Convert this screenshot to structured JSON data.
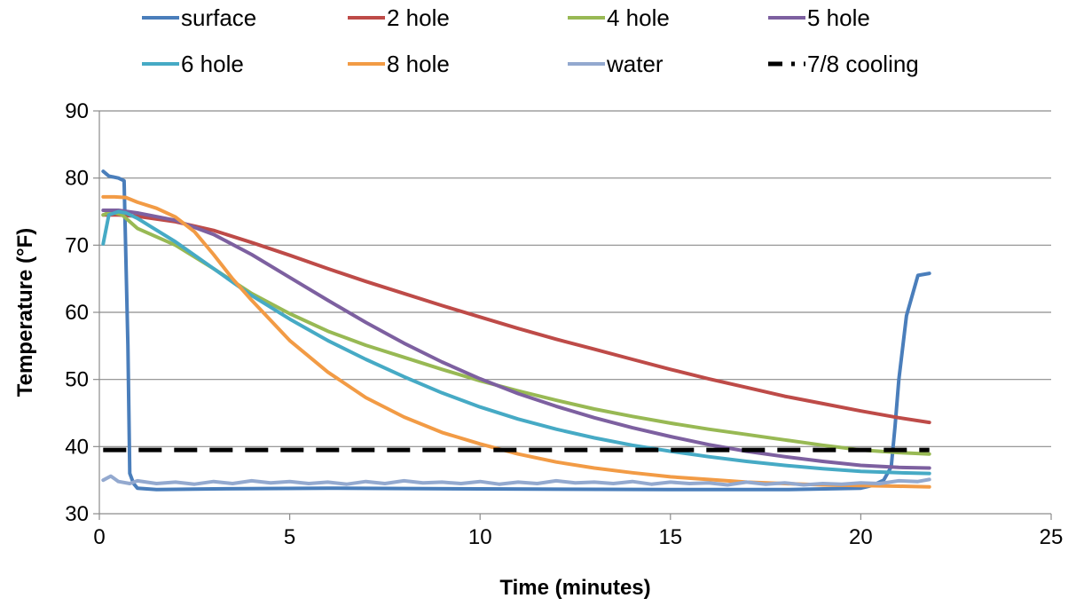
{
  "chart_data": {
    "type": "line",
    "title": "",
    "xlabel": "Time (minutes)",
    "ylabel": "Temperature (°F)",
    "xlim": [
      0,
      25
    ],
    "ylim": [
      30,
      90
    ],
    "xticks": [
      "0",
      "5",
      "10",
      "15",
      "20",
      "25"
    ],
    "yticks": [
      "30",
      "40",
      "50",
      "60",
      "70",
      "80",
      "90"
    ],
    "grid": "horizontal",
    "legend_position": "top",
    "series": [
      {
        "name": "surface",
        "color": "#4A7EBB",
        "dash": "solid",
        "x": [
          0.1,
          0.25,
          0.5,
          0.65,
          0.75,
          0.8,
          0.9,
          1.0,
          1.5,
          3,
          6,
          10,
          15,
          18,
          20,
          20.3,
          20.6,
          20.8,
          20.9,
          21.0,
          21.2,
          21.5,
          21.8
        ],
        "y": [
          81,
          80.3,
          80,
          79.6,
          55,
          36,
          34.5,
          33.8,
          33.6,
          33.7,
          33.8,
          33.7,
          33.6,
          33.6,
          33.8,
          34.2,
          35,
          37,
          43,
          50,
          59.5,
          65.5,
          65.8
        ]
      },
      {
        "name": "2 hole",
        "color": "#BE4B48",
        "dash": "solid",
        "x": [
          0.1,
          0.5,
          1,
          2,
          3,
          4,
          5,
          6,
          7,
          8,
          9,
          10,
          11,
          12,
          13,
          14,
          15,
          16,
          17,
          18,
          19,
          20,
          21,
          21.8
        ],
        "y": [
          74.5,
          74.5,
          74.3,
          73.5,
          72.2,
          70.4,
          68.5,
          66.5,
          64.6,
          62.8,
          61,
          59.3,
          57.6,
          56,
          54.5,
          53,
          51.5,
          50.1,
          48.8,
          47.5,
          46.4,
          45.3,
          44.3,
          43.6
        ]
      },
      {
        "name": "4 hole",
        "color": "#98B954",
        "dash": "solid",
        "x": [
          0.1,
          0.3,
          0.6,
          1,
          2,
          3,
          4,
          5,
          6,
          7,
          8,
          9,
          10,
          11,
          12,
          13,
          14,
          15,
          16,
          17,
          18,
          19,
          20,
          21,
          21.8
        ],
        "y": [
          74.5,
          75,
          74.5,
          72.5,
          70,
          66.5,
          62.8,
          59.8,
          57.2,
          55.1,
          53.3,
          51.5,
          49.8,
          48.3,
          46.9,
          45.6,
          44.5,
          43.5,
          42.6,
          41.8,
          41,
          40.2,
          39.5,
          39.1,
          38.9
        ]
      },
      {
        "name": "5 hole",
        "color": "#7D60A0",
        "dash": "solid",
        "x": [
          0.1,
          0.5,
          1,
          2,
          3,
          4,
          5,
          6,
          7,
          8,
          9,
          10,
          11,
          12,
          13,
          14,
          15,
          16,
          17,
          18,
          19,
          20,
          21,
          21.8
        ],
        "y": [
          75.2,
          75.2,
          74.8,
          73.7,
          71.6,
          68.6,
          65.2,
          61.8,
          58.5,
          55.4,
          52.6,
          50.1,
          47.9,
          46,
          44.3,
          42.8,
          41.5,
          40.3,
          39.3,
          38.5,
          37.8,
          37.2,
          36.9,
          36.8
        ]
      },
      {
        "name": "6 hole",
        "color": "#46AAC5",
        "dash": "solid",
        "x": [
          0.1,
          0.25,
          0.5,
          0.7,
          1,
          2,
          3,
          4,
          5,
          6,
          7,
          8,
          9,
          10,
          11,
          12,
          13,
          14,
          15,
          16,
          17,
          18,
          19,
          20,
          21,
          21.8
        ],
        "y": [
          70.2,
          74.5,
          75,
          74.8,
          74,
          70.5,
          66.5,
          62.5,
          59,
          55.8,
          53,
          50.4,
          48,
          45.9,
          44.1,
          42.6,
          41.3,
          40.2,
          39.3,
          38.5,
          37.8,
          37.2,
          36.7,
          36.3,
          36.1,
          36.0
        ]
      },
      {
        "name": "8 hole",
        "color": "#F29B45",
        "dash": "solid",
        "x": [
          0.1,
          0.4,
          0.7,
          1,
          1.5,
          2,
          2.5,
          3,
          3.5,
          4,
          5,
          6,
          7,
          8,
          9,
          10,
          11,
          12,
          13,
          14,
          15,
          16,
          17,
          18,
          19,
          20,
          21,
          21.8
        ],
        "y": [
          77.2,
          77.2,
          77.1,
          76.4,
          75.5,
          74.2,
          72,
          68.6,
          65,
          61.8,
          55.8,
          51.1,
          47.3,
          44.4,
          42.1,
          40.4,
          38.9,
          37.7,
          36.8,
          36.1,
          35.5,
          35.1,
          34.7,
          34.5,
          34.3,
          34.2,
          34.1,
          34.0
        ]
      },
      {
        "name": "water",
        "color": "#93A9CF",
        "dash": "solid",
        "x": [
          0.1,
          0.3,
          0.5,
          0.8,
          1.0,
          1.5,
          2,
          2.5,
          3,
          3.5,
          4,
          4.5,
          5,
          5.5,
          6,
          6.5,
          7,
          7.5,
          8,
          8.5,
          9,
          9.5,
          10,
          10.5,
          11,
          11.5,
          12,
          12.5,
          13,
          13.5,
          14,
          14.5,
          15,
          15.5,
          16,
          16.5,
          17,
          17.5,
          18,
          18.5,
          19,
          19.5,
          20,
          20.5,
          21,
          21.5,
          21.8
        ],
        "y": [
          35,
          35.6,
          34.8,
          34.5,
          34.9,
          34.5,
          34.7,
          34.4,
          34.8,
          34.5,
          34.9,
          34.6,
          34.8,
          34.5,
          34.7,
          34.4,
          34.8,
          34.5,
          34.9,
          34.6,
          34.7,
          34.5,
          34.8,
          34.4,
          34.7,
          34.5,
          34.9,
          34.6,
          34.7,
          34.5,
          34.8,
          34.4,
          34.7,
          34.5,
          34.6,
          34.3,
          34.7,
          34.4,
          34.6,
          34.3,
          34.5,
          34.4,
          34.6,
          34.5,
          34.9,
          34.8,
          35.1
        ]
      },
      {
        "name": "7/8  cooling",
        "color": "#000000",
        "dash": "dashed",
        "x": [
          0.1,
          21.8
        ],
        "y": [
          39.5,
          39.5
        ]
      }
    ]
  }
}
